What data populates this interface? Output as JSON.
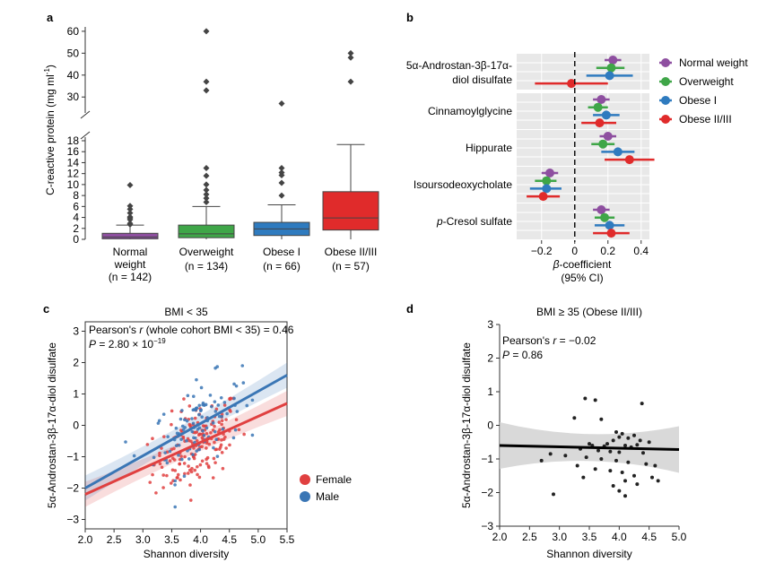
{
  "panels": {
    "a": "a",
    "b": "b",
    "c": "c",
    "d": "d"
  },
  "colors": {
    "normal": "#8e4fa0",
    "overweight": "#3fa648",
    "obese1": "#2f7bbf",
    "obese23": "#e02b2b",
    "female": "#e04040",
    "male": "#3a76b5",
    "grid": "#e8e8e8",
    "band": "#cfcfcf"
  },
  "chart_data": [
    {
      "id": "a",
      "type": "box",
      "ylabel_main": "C-reactive protein (mg ml",
      "ylabel_sup": "-1",
      "ylabel_end": ")",
      "upper_ticks": [
        30,
        40,
        50,
        60
      ],
      "lower_ticks": [
        0,
        2,
        4,
        6,
        8,
        10,
        12,
        14,
        16,
        18
      ],
      "groups": [
        {
          "label": "Normal",
          "label2": "weight",
          "n_text": "(n = 142)",
          "color_key": "normal",
          "q1": 0.1,
          "median": 0.4,
          "q3": 1.1,
          "whisker_low": 0,
          "whisker_high": 2.6,
          "outliers": [
            2.7,
            2.9,
            3.6,
            3.9,
            4.1,
            4.8,
            5.5,
            6.1,
            9.9
          ]
        },
        {
          "label": "Overweight",
          "label2": "",
          "n_text": "(n = 134)",
          "color_key": "overweight",
          "q1": 0.3,
          "median": 1.0,
          "q3": 2.6,
          "whisker_low": 0,
          "whisker_high": 6.0,
          "outliers": [
            6.8,
            7.5,
            8.2,
            9.0,
            10.0,
            11.6,
            13.0,
            60,
            37,
            33
          ]
        },
        {
          "label": "Obese I",
          "label2": "",
          "n_text": "(n = 66)",
          "color_key": "obese1",
          "q1": 0.7,
          "median": 1.9,
          "q3": 3.1,
          "whisker_low": 0,
          "whisker_high": 6.3,
          "outliers": [
            8.0,
            10.3,
            11.7,
            12.2,
            13.0,
            27
          ]
        },
        {
          "label": "Obese II/III",
          "label2": "",
          "n_text": "(n = 57)",
          "color_key": "obese23",
          "q1": 1.7,
          "median": 3.9,
          "q3": 8.7,
          "whisker_low": 0,
          "whisker_high": 17.3,
          "outliers": [
            50,
            48,
            37
          ]
        }
      ]
    },
    {
      "id": "b",
      "type": "forest",
      "xlabel_italic": "β",
      "xlabel_rest": "-coefficient",
      "xlabel2": "(95% CI)",
      "xlim": [
        -0.35,
        0.45
      ],
      "xticks": [
        -0.2,
        0,
        0.2,
        0.4
      ],
      "xtick_labels": [
        "−0.2",
        "0",
        "0.2",
        "0.4"
      ],
      "legend": [
        "Normal weight",
        "Overweight",
        "Obese I",
        "Obese II/III"
      ],
      "legend_color_keys": [
        "normal",
        "overweight",
        "obese1",
        "obese23"
      ],
      "metabolites": [
        {
          "label": "5α-Androstan-3β-17α-",
          "label2": "diol disulfate",
          "italic_prefix": "",
          "estimates": [
            {
              "est": 0.23,
              "lo": 0.18,
              "hi": 0.28
            },
            {
              "est": 0.22,
              "lo": 0.13,
              "hi": 0.3
            },
            {
              "est": 0.21,
              "lo": 0.07,
              "hi": 0.35
            },
            {
              "est": -0.02,
              "lo": -0.24,
              "hi": 0.2
            }
          ]
        },
        {
          "label": "Cinnamoylglycine",
          "label2": "",
          "italic_prefix": "",
          "estimates": [
            {
              "est": 0.16,
              "lo": 0.11,
              "hi": 0.21
            },
            {
              "est": 0.14,
              "lo": 0.08,
              "hi": 0.2
            },
            {
              "est": 0.19,
              "lo": 0.11,
              "hi": 0.27
            },
            {
              "est": 0.15,
              "lo": 0.04,
              "hi": 0.25
            }
          ]
        },
        {
          "label": "Hippurate",
          "label2": "",
          "italic_prefix": "",
          "estimates": [
            {
              "est": 0.2,
              "lo": 0.15,
              "hi": 0.25
            },
            {
              "est": 0.17,
              "lo": 0.1,
              "hi": 0.24
            },
            {
              "est": 0.26,
              "lo": 0.16,
              "hi": 0.36
            },
            {
              "est": 0.33,
              "lo": 0.18,
              "hi": 0.48
            }
          ]
        },
        {
          "label": "Isoursodeoxycholate",
          "label2": "",
          "italic_prefix": "",
          "estimates": [
            {
              "est": -0.15,
              "lo": -0.2,
              "hi": -0.1
            },
            {
              "est": -0.17,
              "lo": -0.24,
              "hi": -0.11
            },
            {
              "est": -0.17,
              "lo": -0.27,
              "hi": -0.08
            },
            {
              "est": -0.19,
              "lo": -0.29,
              "hi": -0.09
            }
          ]
        },
        {
          "label": "-Cresol sulfate",
          "label2": "",
          "italic_prefix": "p",
          "estimates": [
            {
              "est": 0.16,
              "lo": 0.11,
              "hi": 0.21
            },
            {
              "est": 0.18,
              "lo": 0.12,
              "hi": 0.24
            },
            {
              "est": 0.21,
              "lo": 0.12,
              "hi": 0.3
            },
            {
              "est": 0.22,
              "lo": 0.11,
              "hi": 0.33
            }
          ]
        }
      ]
    },
    {
      "id": "c",
      "type": "scatter",
      "title": "BMI < 35",
      "xlabel": "Shannon diversity",
      "ylabel": "5α-Androstan-3β-17α-diol disulfate",
      "xlim": [
        2.0,
        5.5
      ],
      "ylim": [
        -3.3,
        3.3
      ],
      "xticks": [
        2.0,
        2.5,
        3.0,
        3.5,
        4.0,
        4.5,
        5.0,
        5.5
      ],
      "xtick_labels": [
        "2.0",
        "2.5",
        "3.0",
        "3.5",
        "4.0",
        "4.5",
        "5.0",
        "5.5"
      ],
      "yticks": [
        -3,
        -2,
        -1,
        0,
        1,
        2,
        3
      ],
      "ytick_labels": [
        "−3",
        "−2",
        "−1",
        "0",
        "1",
        "2",
        "3"
      ],
      "annotation_line1": "Pearson's r (whole cohort BMI < 35) = 0.46",
      "annotation_p_prefix": "P = 2.80 × 10",
      "annotation_p_exp": "−19",
      "legend": [
        "Female",
        "Male"
      ],
      "fits": [
        {
          "name": "Female",
          "x": [
            2.0,
            5.5
          ],
          "y": [
            -2.2,
            0.7
          ]
        },
        {
          "name": "Male",
          "x": [
            2.0,
            5.5
          ],
          "y": [
            -2.0,
            1.6
          ]
        }
      ],
      "points_summary": {
        "n_female": 170,
        "n_male": 110,
        "x_range": [
          2.7,
          4.9
        ],
        "y_range": [
          -2.8,
          1.9
        ]
      }
    },
    {
      "id": "d",
      "type": "scatter",
      "title": "BMI ≥ 35 (Obese II/III)",
      "xlabel": "Shannon diversity",
      "ylabel": "5α-Androstan-3β-17α-diol disulfate",
      "xlim": [
        2.0,
        5.0
      ],
      "ylim": [
        -3.0,
        3.0
      ],
      "xticks": [
        2.0,
        2.5,
        3.0,
        3.5,
        4.0,
        4.5,
        5.0
      ],
      "xtick_labels": [
        "2.0",
        "2.5",
        "3.0",
        "3.5",
        "4.0",
        "4.5",
        "5.0"
      ],
      "yticks": [
        -3,
        -2,
        -1,
        0,
        1,
        2,
        3
      ],
      "ytick_labels": [
        "−3",
        "−2",
        "−1",
        "0",
        "1",
        "2",
        "3"
      ],
      "annotation_line1": "Pearson's r = −0.02",
      "annotation_p": "P = 0.86",
      "fit": {
        "x": [
          2.0,
          5.0
        ],
        "y": [
          -0.6,
          -0.72
        ]
      },
      "points": [
        [
          3.43,
          0.8
        ],
        [
          3.6,
          0.75
        ],
        [
          4.38,
          0.65
        ],
        [
          3.25,
          0.22
        ],
        [
          3.7,
          0.18
        ],
        [
          3.95,
          -0.2
        ],
        [
          4.05,
          -0.25
        ],
        [
          4.0,
          -0.35
        ],
        [
          4.15,
          -0.38
        ],
        [
          3.9,
          -0.45
        ],
        [
          4.25,
          -0.3
        ],
        [
          4.35,
          -0.45
        ],
        [
          4.5,
          -0.5
        ],
        [
          3.5,
          -0.55
        ],
        [
          3.55,
          -0.6
        ],
        [
          3.75,
          -0.62
        ],
        [
          3.8,
          -0.55
        ],
        [
          4.1,
          -0.6
        ],
        [
          4.2,
          -0.65
        ],
        [
          4.3,
          -0.58
        ],
        [
          3.35,
          -0.7
        ],
        [
          3.65,
          -0.75
        ],
        [
          3.85,
          -0.78
        ],
        [
          4.0,
          -0.8
        ],
        [
          4.4,
          -0.82
        ],
        [
          2.85,
          -0.85
        ],
        [
          3.1,
          -0.9
        ],
        [
          3.45,
          -0.95
        ],
        [
          3.7,
          -1.0
        ],
        [
          3.95,
          -1.05
        ],
        [
          4.15,
          -1.1
        ],
        [
          4.45,
          -1.15
        ],
        [
          4.6,
          -1.2
        ],
        [
          2.7,
          -1.05
        ],
        [
          3.3,
          -1.2
        ],
        [
          3.6,
          -1.3
        ],
        [
          3.85,
          -1.35
        ],
        [
          4.05,
          -1.4
        ],
        [
          4.25,
          -1.5
        ],
        [
          4.55,
          -1.55
        ],
        [
          3.4,
          -1.55
        ],
        [
          4.1,
          -1.65
        ],
        [
          4.3,
          -1.75
        ],
        [
          4.65,
          -1.65
        ],
        [
          3.9,
          -1.8
        ],
        [
          4.0,
          -1.95
        ],
        [
          2.9,
          -2.05
        ],
        [
          4.1,
          -2.1
        ]
      ]
    }
  ]
}
